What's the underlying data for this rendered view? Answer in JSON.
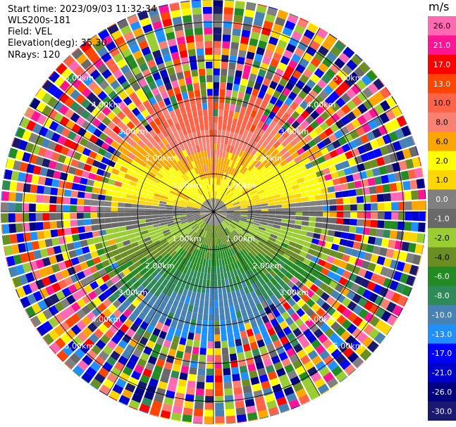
{
  "header": {
    "start_time": "Start time: 2023/09/03 11:32:34",
    "instrument": "WLS200s-181",
    "field": "Field: VEL",
    "elevation": "Elevation(deg): 35.30",
    "nrays": "NRays: 120"
  },
  "chart_data": {
    "type": "heatmap",
    "projection": "polar-ppi",
    "field": "VEL",
    "n_rays": 120,
    "range_rings_km": [
      1.0,
      2.0,
      3.0,
      4.0,
      5.0
    ],
    "range_ring_labels": [
      "1.00km",
      "2.00km",
      "3.00km",
      "4.00km",
      "5.00km"
    ],
    "max_range_km": 5.6,
    "spokes_deg": [
      0,
      30,
      60,
      90,
      120,
      150,
      180,
      210,
      240,
      270,
      300,
      330
    ],
    "colorbar": {
      "unit": "m/s",
      "labels": [
        "26.0",
        "21.0",
        "17.0",
        "13.0",
        "10.0",
        "8.0",
        "6.0",
        "2.0",
        "1.0",
        "0.0",
        "-1.0",
        "-2.0",
        "-4.0",
        "-6.0",
        "-8.0",
        "-10.0",
        "-13.0",
        "-17.0",
        "-21.0",
        "-26.0",
        "-30.0"
      ],
      "colors": [
        "#ff69b4",
        "#ff1493",
        "#ff0000",
        "#ff4500",
        "#ff6347",
        "#fa8072",
        "#ffa500",
        "#ffff00",
        "#ffd700",
        "#808080",
        "#696969",
        "#9acd32",
        "#6b8e23",
        "#228b22",
        "#2e8b57",
        "#4682b4",
        "#1e90ff",
        "#0000ff",
        "#0000cd",
        "#000080",
        "#191970"
      ]
    },
    "pattern": {
      "clean_range_km": 3.0,
      "towards_sector": "north (~300 to ~60 deg), velocity +1 to +13 m/s",
      "away_sector": "south (~120 to ~240 deg), velocity -1 to -17 m/s",
      "zero_line_deg": [
        90,
        270
      ],
      "far_range": "noise"
    }
  }
}
